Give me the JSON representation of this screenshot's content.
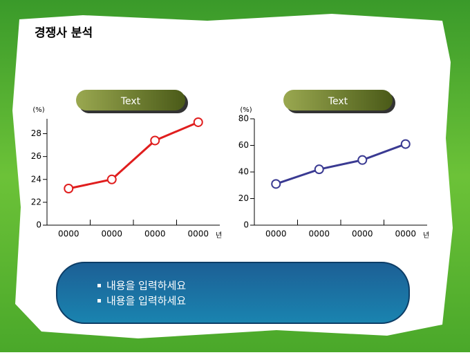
{
  "title": "경쟁사 분석",
  "bullets": [
    "내용을 입력하세요",
    "내용을 입력하세요"
  ],
  "chart_data": [
    {
      "type": "line",
      "header": "Text",
      "y_label": "(%)",
      "x_unit": "년",
      "categories": [
        "0000",
        "0000",
        "0000",
        "0000"
      ],
      "values": [
        23.2,
        24.0,
        27.4,
        29.0
      ],
      "color": "#e01e1e",
      "ylim": [
        0,
        29.3
      ],
      "y_break": [
        0,
        20
      ],
      "yticks": [
        0,
        22,
        24,
        26,
        28
      ]
    },
    {
      "type": "line",
      "header": "Text",
      "y_label": "(%)",
      "x_unit": "년",
      "categories": [
        "0000",
        "0000",
        "0000",
        "0000"
      ],
      "values": [
        31,
        42,
        49,
        61
      ],
      "color": "#3a3a92",
      "ylim": [
        0,
        80
      ],
      "yticks": [
        0,
        20,
        40,
        60,
        80
      ]
    }
  ]
}
